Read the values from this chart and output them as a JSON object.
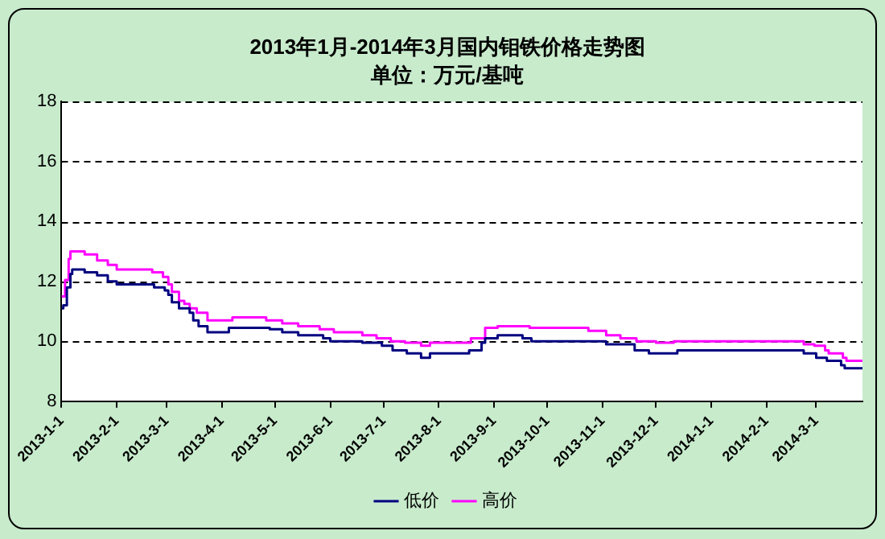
{
  "chart_data": {
    "type": "step",
    "title": "2013年1月-2014年3月国内钼铁价格走势图",
    "subtitle": "单位：万元/基吨",
    "xlim": [
      "2013-01-01",
      "2014-03-27"
    ],
    "xticks": [
      {
        "value": "2013-01-01",
        "label": "2013-1-1"
      },
      {
        "value": "2013-02-01",
        "label": "2013-2-1"
      },
      {
        "value": "2013-03-01",
        "label": "2013-3-1"
      },
      {
        "value": "2013-04-01",
        "label": "2013-4-1"
      },
      {
        "value": "2013-05-01",
        "label": "2013-5-1"
      },
      {
        "value": "2013-06-01",
        "label": "2013-6-1"
      },
      {
        "value": "2013-07-01",
        "label": "2013-7-1"
      },
      {
        "value": "2013-08-01",
        "label": "2013-8-1"
      },
      {
        "value": "2013-09-01",
        "label": "2013-9-1"
      },
      {
        "value": "2013-10-01",
        "label": "2013-10-1"
      },
      {
        "value": "2013-11-01",
        "label": "2013-11-1"
      },
      {
        "value": "2013-12-01",
        "label": "2013-12-1"
      },
      {
        "value": "2014-01-01",
        "label": "2014-1-1"
      },
      {
        "value": "2014-02-01",
        "label": "2014-2-1"
      },
      {
        "value": "2014-03-01",
        "label": "2014-3-1"
      }
    ],
    "ylim": [
      8,
      18
    ],
    "yticks": [
      8,
      10,
      12,
      14,
      16,
      18
    ],
    "grid": "y",
    "legend": "bottom",
    "series": [
      {
        "name": "低价",
        "color": "#000080",
        "x": [
          "2013-01-01",
          "2013-01-02",
          "2013-01-04",
          "2013-01-06",
          "2013-01-07",
          "2013-01-14",
          "2013-01-21",
          "2013-01-27",
          "2013-02-01",
          "2013-02-22",
          "2013-02-28",
          "2013-03-02",
          "2013-03-04",
          "2013-03-08",
          "2013-03-14",
          "2013-03-16",
          "2013-03-19",
          "2013-03-24",
          "2013-04-05",
          "2013-04-28",
          "2013-05-05",
          "2013-05-14",
          "2013-05-28",
          "2013-06-01",
          "2013-06-19",
          "2013-06-30",
          "2013-07-06",
          "2013-07-14",
          "2013-07-22",
          "2013-07-27",
          "2013-08-18",
          "2013-08-25",
          "2013-08-27",
          "2013-09-03",
          "2013-09-17",
          "2013-09-22",
          "2013-11-03",
          "2013-11-19",
          "2013-11-27",
          "2013-12-13",
          "2014-02-22",
          "2014-03-01",
          "2014-03-07",
          "2014-03-15",
          "2014-03-17",
          "2014-03-27"
        ],
        "values": [
          11.1,
          11.2,
          11.8,
          12.25,
          12.4,
          12.3,
          12.2,
          12.0,
          11.9,
          11.8,
          11.7,
          11.55,
          11.3,
          11.1,
          10.95,
          10.7,
          10.5,
          10.3,
          10.45,
          10.4,
          10.3,
          10.2,
          10.1,
          10.0,
          9.95,
          9.85,
          9.7,
          9.6,
          9.45,
          9.6,
          9.7,
          9.95,
          10.1,
          10.2,
          10.1,
          10.0,
          9.9,
          9.7,
          9.6,
          9.7,
          9.6,
          9.45,
          9.35,
          9.2,
          9.1,
          9.1
        ]
      },
      {
        "name": "高价",
        "color": "#ff00ff",
        "x": [
          "2013-01-01",
          "2013-01-03",
          "2013-01-05",
          "2013-01-06",
          "2013-01-14",
          "2013-01-21",
          "2013-01-27",
          "2013-02-01",
          "2013-02-21",
          "2013-02-27",
          "2013-03-02",
          "2013-03-04",
          "2013-03-08",
          "2013-03-11",
          "2013-03-14",
          "2013-03-18",
          "2013-03-24",
          "2013-04-07",
          "2013-04-26",
          "2013-05-05",
          "2013-05-14",
          "2013-05-26",
          "2013-06-03",
          "2013-06-19",
          "2013-06-27",
          "2013-07-05",
          "2013-07-13",
          "2013-07-22",
          "2013-07-27",
          "2013-08-19",
          "2013-08-27",
          "2013-09-03",
          "2013-09-21",
          "2013-10-24",
          "2013-11-03",
          "2013-11-11",
          "2013-11-20",
          "2013-12-01",
          "2013-12-11",
          "2014-02-22",
          "2014-02-28",
          "2014-03-06",
          "2014-03-08",
          "2014-03-16",
          "2014-03-18",
          "2014-03-27"
        ],
        "values": [
          11.5,
          12.05,
          12.75,
          13.0,
          12.9,
          12.7,
          12.55,
          12.4,
          12.3,
          12.15,
          11.9,
          11.65,
          11.35,
          11.25,
          11.1,
          10.95,
          10.7,
          10.8,
          10.7,
          10.6,
          10.5,
          10.4,
          10.3,
          10.2,
          10.1,
          10.0,
          9.95,
          9.85,
          9.95,
          10.1,
          10.45,
          10.5,
          10.45,
          10.35,
          10.2,
          10.1,
          10.0,
          9.95,
          10.0,
          9.9,
          9.85,
          9.7,
          9.6,
          9.45,
          9.35,
          9.35
        ]
      }
    ]
  }
}
